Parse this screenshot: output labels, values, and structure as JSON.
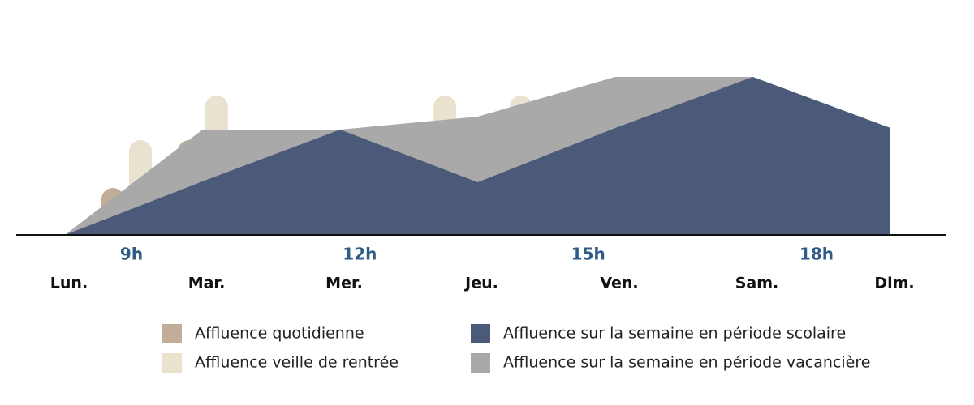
{
  "chart_data": [
    {
      "type": "bar",
      "categories": [
        "9h",
        null,
        null,
        "12h",
        null,
        null,
        "15h",
        null,
        null,
        "18h"
      ],
      "ylim": [
        0,
        200
      ],
      "series": [
        {
          "name": "Affluence quotidienne",
          "color": "#c2ad98",
          "values": [
            58,
            117,
            58,
            58,
            117,
            117,
            58,
            58,
            117,
            58
          ]
        },
        {
          "name": "Affluence veille de rentrée",
          "color": "#e8e2cf",
          "values": [
            117,
            172,
            117,
            117,
            172,
            172,
            172,
            172,
            172,
            117
          ]
        }
      ]
    },
    {
      "type": "area",
      "categories": [
        "Lun.",
        "Mar.",
        "Mer.",
        "Jeu.",
        "Ven.",
        "Sam.",
        "Dim."
      ],
      "ylim": [
        0,
        200
      ],
      "series": [
        {
          "name": "Affluence sur la semaine en période vacancière",
          "color": "#a9a9a9",
          "values": [
            0,
            130,
            130,
            146,
            195,
            195,
            132
          ]
        },
        {
          "name": "Affluence sur la semaine en période scolaire",
          "color": "#4a5a78",
          "values": [
            0,
            66,
            130,
            65,
            132,
            195,
            132
          ]
        }
      ]
    }
  ]
}
